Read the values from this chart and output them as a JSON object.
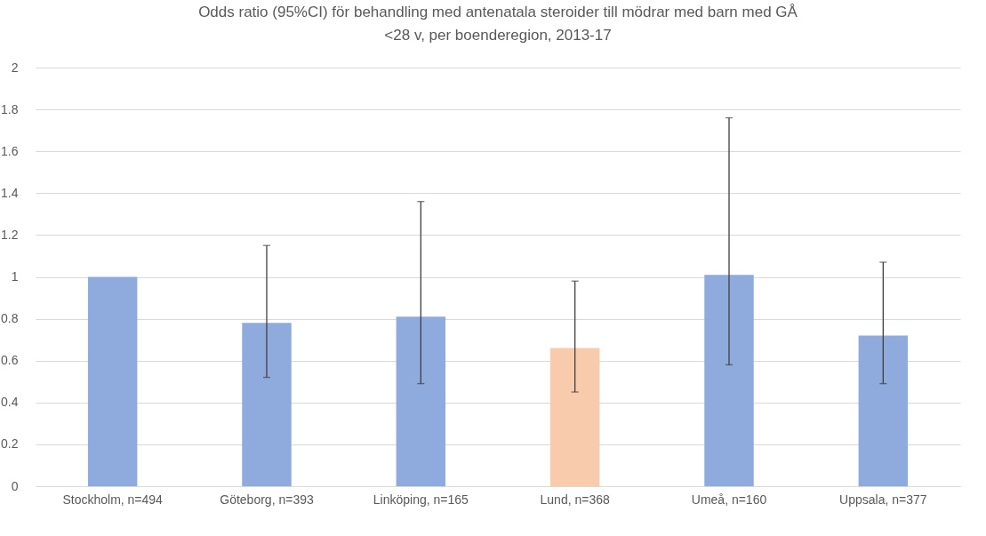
{
  "chart_data": {
    "type": "bar",
    "title": "Odds ratio (95%CI) för behandling med antenatala steroider till mödrar med barn med GÅ\n<28 v, per boenderegion, 2013-17",
    "categories": [
      "Stockholm, n=494",
      "Göteborg, n=393",
      "Linköping, n=165",
      "Lund, n=368",
      "Umeå, n=160",
      "Uppsala, n=377"
    ],
    "values": [
      1.0,
      0.78,
      0.81,
      0.66,
      1.01,
      0.72
    ],
    "colors": [
      "#8faadc",
      "#8faadc",
      "#8faadc",
      "#f8cbad",
      "#8faadc",
      "#8faadc"
    ],
    "errors": [
      null,
      [
        0.52,
        1.15
      ],
      [
        0.49,
        1.36
      ],
      [
        0.45,
        0.98
      ],
      [
        0.58,
        1.76
      ],
      [
        0.49,
        1.07
      ]
    ],
    "ylim": [
      0,
      2
    ],
    "yticks": [
      0,
      0.2,
      0.4,
      0.6,
      0.8,
      1,
      1.2,
      1.4,
      1.6,
      1.8,
      2
    ],
    "grid": "y"
  }
}
